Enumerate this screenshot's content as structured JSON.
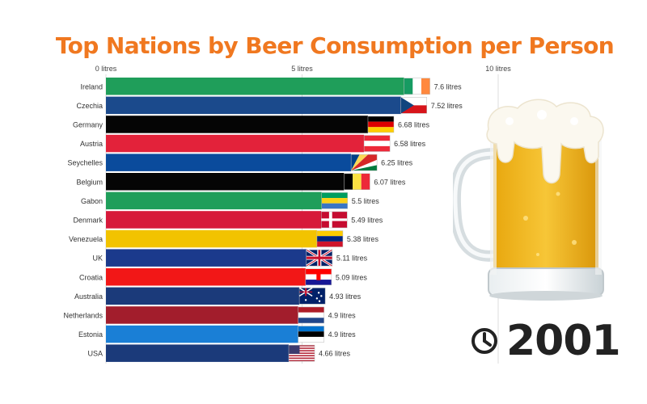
{
  "title": "Top Nations by Beer Consumption per Person",
  "year": "2001",
  "chart_data": {
    "type": "bar",
    "orientation": "horizontal",
    "title": "Top Nations by Beer Consumption per Person",
    "xlim": [
      0,
      10
    ],
    "x_ticks": [
      0,
      5,
      10
    ],
    "x_tick_labels": [
      "0 litres",
      "5 litres",
      "10 litres"
    ],
    "unit": "litres",
    "categories": [
      "Ireland",
      "Czechia",
      "Germany",
      "Austria",
      "Seychelles",
      "Belgium",
      "Gabon",
      "Denmark",
      "Venezuela",
      "UK",
      "Croatia",
      "Australia",
      "Netherlands",
      "Estonia",
      "USA"
    ],
    "values": [
      7.6,
      7.52,
      6.68,
      6.58,
      6.25,
      6.07,
      5.5,
      5.49,
      5.38,
      5.11,
      5.09,
      4.93,
      4.9,
      4.9,
      4.66
    ],
    "value_labels": [
      "7.6 litres",
      "7.52 litres",
      "6.68 litres",
      "6.58 litres",
      "6.25 litres",
      "6.07 litres",
      "5.5 litres",
      "5.49 litres",
      "5.38 litres",
      "5.11 litres",
      "5.09 litres",
      "4.93 litres",
      "4.9 litres",
      "4.9 litres",
      "4.66 litres"
    ],
    "colors": [
      "#1f9e5a",
      "#1b4a8c",
      "#050505",
      "#e3223a",
      "#0a4b9c",
      "#050505",
      "#1f9e5a",
      "#d7193a",
      "#f2c300",
      "#1b3a8c",
      "#f21717",
      "#1b3a7a",
      "#a21d2c",
      "#1a7fd6",
      "#1b3a7a"
    ],
    "flags": [
      "ireland-flag",
      "czechia-flag",
      "germany-flag",
      "austria-flag",
      "seychelles-flag",
      "belgium-flag",
      "gabon-flag",
      "denmark-flag",
      "venezuela-flag",
      "uk-flag",
      "croatia-flag",
      "australia-flag",
      "netherlands-flag",
      "estonia-flag",
      "usa-flag"
    ],
    "grid": true
  },
  "icons": {
    "clock": "clock-icon",
    "beer": "beer-mug-icon"
  }
}
